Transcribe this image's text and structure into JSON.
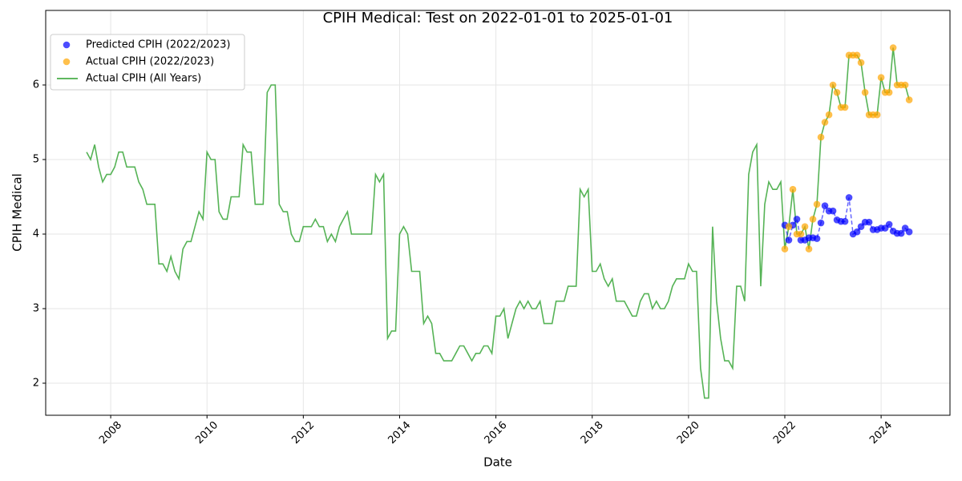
{
  "chart_data": {
    "type": "line",
    "title": "CPIH Medical: Test on 2022-01-01 to 2025-01-01",
    "x_label": "Date",
    "y_label": "CPIH Medical",
    "xlim": [
      2006.65,
      2025.43
    ],
    "xticks": [
      2008,
      2010,
      2012,
      2014,
      2016,
      2018,
      2020,
      2022,
      2024
    ],
    "ylim": [
      1.57,
      7.0
    ],
    "yticks": [
      2,
      3,
      4,
      5,
      6
    ],
    "grid": true,
    "legend": "upper left",
    "series": [
      {
        "name": "Predicted CPIH (2022/2023)",
        "kind": "scatter",
        "color": "#0000ff",
        "linestyle": "dashed",
        "x": [
          2022.0,
          2022.083,
          2022.167,
          2022.25,
          2022.333,
          2022.417,
          2022.5,
          2022.583,
          2022.667,
          2022.75,
          2022.833,
          2022.917,
          2023.0,
          2023.083,
          2023.167,
          2023.25,
          2023.333,
          2023.417,
          2023.5,
          2023.583,
          2023.667,
          2023.75,
          2023.833,
          2023.917,
          2024.0,
          2024.083,
          2024.167,
          2024.25,
          2024.333,
          2024.417,
          2024.5,
          2024.583
        ],
        "values": [
          4.12,
          3.92,
          4.12,
          4.2,
          3.92,
          3.92,
          3.95,
          3.95,
          3.94,
          4.15,
          4.38,
          4.31,
          4.31,
          4.19,
          4.17,
          4.17,
          4.49,
          4.0,
          4.03,
          4.1,
          4.16,
          4.16,
          4.06,
          4.06,
          4.08,
          4.08,
          4.13,
          4.04,
          4.01,
          4.01,
          4.08,
          4.03
        ]
      },
      {
        "name": "Actual CPIH (2022/2023)",
        "kind": "scatter",
        "color": "#ffa500",
        "x": [
          2022.0,
          2022.083,
          2022.167,
          2022.25,
          2022.333,
          2022.417,
          2022.5,
          2022.583,
          2022.667,
          2022.75,
          2022.833,
          2022.917,
          2023.0,
          2023.083,
          2023.167,
          2023.25,
          2023.333,
          2023.417,
          2023.5,
          2023.583,
          2023.667,
          2023.75,
          2023.833,
          2023.917,
          2024.0,
          2024.083,
          2024.167,
          2024.25,
          2024.333,
          2024.417,
          2024.5,
          2024.583
        ],
        "values": [
          3.8,
          4.1,
          4.6,
          4.0,
          4.0,
          4.1,
          3.8,
          4.2,
          4.4,
          5.3,
          5.5,
          5.6,
          6.0,
          5.9,
          5.7,
          5.7,
          6.4,
          6.4,
          6.4,
          6.3,
          5.9,
          5.6,
          5.6,
          5.6,
          6.1,
          5.9,
          5.9,
          6.5,
          6.0,
          6.0,
          6.0,
          5.8
        ]
      },
      {
        "name": "Actual CPIH (All Years)",
        "kind": "line",
        "color": "#2ca02c",
        "x": [
          2007.5,
          2007.583,
          2007.667,
          2007.75,
          2007.833,
          2007.917,
          2008.0,
          2008.083,
          2008.167,
          2008.25,
          2008.333,
          2008.417,
          2008.5,
          2008.583,
          2008.667,
          2008.75,
          2008.833,
          2008.917,
          2009.0,
          2009.083,
          2009.167,
          2009.25,
          2009.333,
          2009.417,
          2009.5,
          2009.583,
          2009.667,
          2009.75,
          2009.833,
          2009.917,
          2010.0,
          2010.083,
          2010.167,
          2010.25,
          2010.333,
          2010.417,
          2010.5,
          2010.583,
          2010.667,
          2010.75,
          2010.833,
          2010.917,
          2011.0,
          2011.083,
          2011.167,
          2011.25,
          2011.333,
          2011.417,
          2011.5,
          2011.583,
          2011.667,
          2011.75,
          2011.833,
          2011.917,
          2012.0,
          2012.083,
          2012.167,
          2012.25,
          2012.333,
          2012.417,
          2012.5,
          2012.583,
          2012.667,
          2012.75,
          2012.833,
          2012.917,
          2013.0,
          2013.083,
          2013.167,
          2013.25,
          2013.333,
          2013.417,
          2013.5,
          2013.583,
          2013.667,
          2013.75,
          2013.833,
          2013.917,
          2014.0,
          2014.083,
          2014.167,
          2014.25,
          2014.333,
          2014.417,
          2014.5,
          2014.583,
          2014.667,
          2014.75,
          2014.833,
          2014.917,
          2015.0,
          2015.083,
          2015.167,
          2015.25,
          2015.333,
          2015.417,
          2015.5,
          2015.583,
          2015.667,
          2015.75,
          2015.833,
          2015.917,
          2016.0,
          2016.083,
          2016.167,
          2016.25,
          2016.333,
          2016.417,
          2016.5,
          2016.583,
          2016.667,
          2016.75,
          2016.833,
          2016.917,
          2017.0,
          2017.083,
          2017.167,
          2017.25,
          2017.333,
          2017.417,
          2017.5,
          2017.583,
          2017.667,
          2017.75,
          2017.833,
          2017.917,
          2018.0,
          2018.083,
          2018.167,
          2018.25,
          2018.333,
          2018.417,
          2018.5,
          2018.583,
          2018.667,
          2018.75,
          2018.833,
          2018.917,
          2019.0,
          2019.083,
          2019.167,
          2019.25,
          2019.333,
          2019.417,
          2019.5,
          2019.583,
          2019.667,
          2019.75,
          2019.833,
          2019.917,
          2020.0,
          2020.083,
          2020.167,
          2020.25,
          2020.333,
          2020.417,
          2020.5,
          2020.583,
          2020.667,
          2020.75,
          2020.833,
          2020.917,
          2021.0,
          2021.083,
          2021.167,
          2021.25,
          2021.333,
          2021.417,
          2021.5,
          2021.583,
          2021.667,
          2021.75,
          2021.833,
          2021.917,
          2022.0,
          2022.083,
          2022.167,
          2022.25,
          2022.333,
          2022.417,
          2022.5,
          2022.583,
          2022.667,
          2022.75,
          2022.833,
          2022.917,
          2023.0,
          2023.083,
          2023.167,
          2023.25,
          2023.333,
          2023.417,
          2023.5,
          2023.583,
          2023.667,
          2023.75,
          2023.833,
          2023.917,
          2024.0,
          2024.083,
          2024.167,
          2024.25,
          2024.333,
          2024.417,
          2024.5,
          2024.583
        ],
        "values": [
          5.1,
          5.0,
          5.2,
          4.9,
          4.7,
          4.8,
          4.8,
          4.9,
          5.1,
          5.1,
          4.9,
          4.9,
          4.9,
          4.7,
          4.6,
          4.4,
          4.4,
          4.4,
          3.6,
          3.6,
          3.5,
          3.7,
          3.5,
          3.4,
          3.8,
          3.9,
          3.9,
          4.1,
          4.3,
          4.2,
          5.1,
          5.0,
          5.0,
          4.3,
          4.2,
          4.2,
          4.5,
          4.5,
          4.5,
          5.2,
          5.1,
          5.1,
          4.4,
          4.4,
          4.4,
          5.9,
          6.0,
          6.0,
          4.4,
          4.3,
          4.3,
          4.0,
          3.9,
          3.9,
          4.1,
          4.1,
          4.1,
          4.2,
          4.1,
          4.1,
          3.9,
          4.0,
          3.9,
          4.1,
          4.2,
          4.3,
          4.0,
          4.0,
          4.0,
          4.0,
          4.0,
          4.0,
          4.8,
          4.7,
          4.8,
          2.6,
          2.7,
          2.7,
          4.0,
          4.1,
          4.0,
          3.5,
          3.5,
          3.5,
          2.8,
          2.9,
          2.8,
          2.4,
          2.4,
          2.3,
          2.3,
          2.3,
          2.4,
          2.5,
          2.5,
          2.4,
          2.3,
          2.4,
          2.4,
          2.5,
          2.5,
          2.4,
          2.9,
          2.9,
          3.0,
          2.6,
          2.8,
          3.0,
          3.1,
          3.0,
          3.1,
          3.0,
          3.0,
          3.1,
          2.8,
          2.8,
          2.8,
          3.1,
          3.1,
          3.1,
          3.3,
          3.3,
          3.3,
          4.6,
          4.5,
          4.6,
          3.5,
          3.5,
          3.6,
          3.4,
          3.3,
          3.4,
          3.1,
          3.1,
          3.1,
          3.0,
          2.9,
          2.9,
          3.1,
          3.2,
          3.2,
          3.0,
          3.1,
          3.0,
          3.0,
          3.1,
          3.3,
          3.4,
          3.4,
          3.4,
          3.6,
          3.5,
          3.5,
          2.2,
          1.8,
          1.8,
          4.1,
          3.1,
          2.6,
          2.3,
          2.3,
          2.2,
          3.3,
          3.3,
          3.1,
          4.8,
          5.1,
          5.2,
          3.3,
          4.4,
          4.7,
          4.6,
          4.6,
          4.7,
          3.8,
          4.1,
          4.6,
          4.0,
          4.0,
          4.1,
          3.8,
          4.2,
          4.4,
          5.3,
          5.5,
          5.6,
          6.0,
          5.9,
          5.7,
          5.7,
          6.4,
          6.4,
          6.4,
          6.3,
          5.9,
          5.6,
          5.6,
          5.6,
          6.1,
          5.9,
          5.9,
          6.5,
          6.0,
          6.0,
          6.0,
          5.8
        ]
      }
    ]
  }
}
